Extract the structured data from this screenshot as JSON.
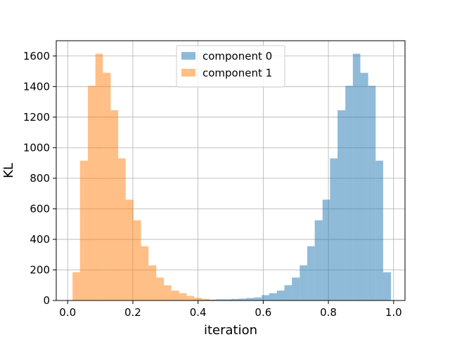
{
  "chart_data": {
    "type": "histogram",
    "title": "",
    "xlabel": "iteration",
    "ylabel": "KL",
    "xlim": [
      -0.035,
      1.035
    ],
    "ylim": [
      0,
      1700
    ],
    "xticks": [
      0.0,
      0.2,
      0.4,
      0.6,
      0.8,
      1.0
    ],
    "xtick_labels": [
      "0.0",
      "0.2",
      "0.4",
      "0.6",
      "0.8",
      "1.0"
    ],
    "yticks": [
      0,
      200,
      400,
      600,
      800,
      1000,
      1200,
      1400,
      1600
    ],
    "ytick_labels": [
      "0",
      "200",
      "400",
      "600",
      "800",
      "1000",
      "1200",
      "1400",
      "1600"
    ],
    "grid": true,
    "legend_position": "upper center",
    "series": [
      {
        "name": "component 0",
        "color": "#1f77b4",
        "alpha": 0.5,
        "bins": [
          {
            "x0": 0.385,
            "x1": 0.408,
            "count": 3
          },
          {
            "x0": 0.408,
            "x1": 0.432,
            "count": 4
          },
          {
            "x0": 0.432,
            "x1": 0.455,
            "count": 5
          },
          {
            "x0": 0.455,
            "x1": 0.478,
            "count": 8
          },
          {
            "x0": 0.478,
            "x1": 0.502,
            "count": 8
          },
          {
            "x0": 0.502,
            "x1": 0.525,
            "count": 10
          },
          {
            "x0": 0.525,
            "x1": 0.548,
            "count": 12
          },
          {
            "x0": 0.548,
            "x1": 0.572,
            "count": 16
          },
          {
            "x0": 0.572,
            "x1": 0.595,
            "count": 20
          },
          {
            "x0": 0.595,
            "x1": 0.618,
            "count": 35
          },
          {
            "x0": 0.618,
            "x1": 0.642,
            "count": 48
          },
          {
            "x0": 0.642,
            "x1": 0.665,
            "count": 65
          },
          {
            "x0": 0.665,
            "x1": 0.688,
            "count": 100
          },
          {
            "x0": 0.688,
            "x1": 0.712,
            "count": 150
          },
          {
            "x0": 0.712,
            "x1": 0.735,
            "count": 230
          },
          {
            "x0": 0.735,
            "x1": 0.758,
            "count": 355
          },
          {
            "x0": 0.758,
            "x1": 0.782,
            "count": 525
          },
          {
            "x0": 0.782,
            "x1": 0.805,
            "count": 660
          },
          {
            "x0": 0.805,
            "x1": 0.828,
            "count": 930
          },
          {
            "x0": 0.828,
            "x1": 0.852,
            "count": 1245
          },
          {
            "x0": 0.852,
            "x1": 0.875,
            "count": 1405
          },
          {
            "x0": 0.875,
            "x1": 0.898,
            "count": 1615
          },
          {
            "x0": 0.898,
            "x1": 0.922,
            "count": 1490
          },
          {
            "x0": 0.922,
            "x1": 0.945,
            "count": 1405
          },
          {
            "x0": 0.945,
            "x1": 0.968,
            "count": 915
          },
          {
            "x0": 0.968,
            "x1": 0.992,
            "count": 185
          }
        ]
      },
      {
        "name": "component 1",
        "color": "#ff7f0e",
        "alpha": 0.5,
        "bins": [
          {
            "x0": 0.015,
            "x1": 0.038,
            "count": 185
          },
          {
            "x0": 0.038,
            "x1": 0.062,
            "count": 915
          },
          {
            "x0": 0.062,
            "x1": 0.085,
            "count": 1405
          },
          {
            "x0": 0.085,
            "x1": 0.108,
            "count": 1615
          },
          {
            "x0": 0.108,
            "x1": 0.132,
            "count": 1490
          },
          {
            "x0": 0.132,
            "x1": 0.155,
            "count": 1245
          },
          {
            "x0": 0.155,
            "x1": 0.178,
            "count": 930
          },
          {
            "x0": 0.178,
            "x1": 0.202,
            "count": 660
          },
          {
            "x0": 0.202,
            "x1": 0.225,
            "count": 525
          },
          {
            "x0": 0.225,
            "x1": 0.248,
            "count": 355
          },
          {
            "x0": 0.248,
            "x1": 0.272,
            "count": 230
          },
          {
            "x0": 0.272,
            "x1": 0.295,
            "count": 150
          },
          {
            "x0": 0.295,
            "x1": 0.318,
            "count": 100
          },
          {
            "x0": 0.318,
            "x1": 0.342,
            "count": 65
          },
          {
            "x0": 0.342,
            "x1": 0.365,
            "count": 48
          },
          {
            "x0": 0.365,
            "x1": 0.388,
            "count": 30
          },
          {
            "x0": 0.388,
            "x1": 0.412,
            "count": 18
          },
          {
            "x0": 0.412,
            "x1": 0.435,
            "count": 10
          },
          {
            "x0": 0.435,
            "x1": 0.458,
            "count": 5
          },
          {
            "x0": 0.458,
            "x1": 0.482,
            "count": 2
          }
        ]
      }
    ]
  }
}
